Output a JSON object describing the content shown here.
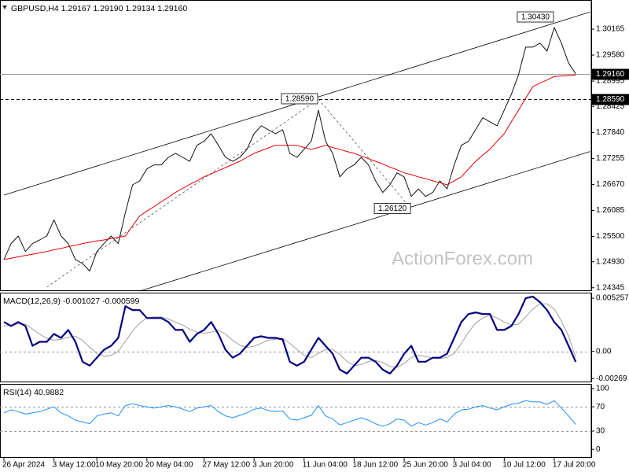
{
  "chart_data": [
    {
      "type": "line",
      "title": "GBPUSD,H4 1.29167 1.29190 1.29134 1.29160",
      "watermark": "ActionForex.com",
      "ylim": [
        1.2427,
        1.3082
      ],
      "yticks": [
        1.30165,
        {
          "value": 1.2958,
          "label": "1.29580"
        },
        1.28995,
        1.28425,
        {
          "value": 1.2784,
          "label": "1.27840"
        },
        1.27255,
        {
          "value": 1.2667,
          "label": "1.26670"
        },
        1.26085,
        {
          "value": 1.255,
          "label": "1.25500"
        },
        {
          "value": 1.2493,
          "label": "1.24930"
        },
        1.24345
      ],
      "series": [
        {
          "color": "#111111",
          "width": 1,
          "values": [
            1.2498,
            1.2534,
            1.2551,
            1.2516,
            1.2534,
            1.2542,
            1.2551,
            1.2587,
            1.2551,
            1.2534,
            1.2498,
            1.2489,
            1.2472,
            1.2516,
            1.2534,
            1.2551,
            1.2534,
            1.2604,
            1.2666,
            1.2675,
            1.2702,
            1.2711,
            1.2711,
            1.2728,
            1.2737,
            1.2728,
            1.2719,
            1.2755,
            1.2764,
            1.2781,
            1.2755,
            1.2728,
            1.2719,
            1.2728,
            1.2746,
            1.2781,
            1.2799,
            1.279,
            1.2781,
            1.279,
            1.2737,
            1.2728,
            1.2746,
            1.2764,
            1.2834,
            1.2764,
            1.2737,
            1.2684,
            1.2702,
            1.2711,
            1.2728,
            1.2711,
            1.2675,
            1.2649,
            1.2666,
            1.2693,
            1.2684,
            1.264,
            1.2657,
            1.264,
            1.2649,
            1.2675,
            1.2657,
            1.2711,
            1.2755,
            1.2764,
            1.279,
            1.2817,
            1.2808,
            1.2799,
            1.2834,
            1.287,
            1.2914,
            1.2976,
            1.2976,
            1.2985,
            1.2967,
            1.302,
            1.2985,
            1.294,
            1.2916
          ]
        },
        {
          "color": "#e00000",
          "width": 1,
          "values": [
            1.2498,
            1.2501,
            1.2504,
            1.2507,
            1.251,
            1.2513,
            1.2516,
            1.252,
            1.2523,
            1.2527,
            1.253,
            1.2534,
            1.2537,
            1.254,
            1.2542,
            1.2545,
            1.2548,
            1.2551,
            1.2574,
            1.2596,
            1.2607,
            1.2617,
            1.2628,
            1.2638,
            1.2649,
            1.2658,
            1.2667,
            1.2675,
            1.2684,
            1.2691,
            1.2698,
            1.2705,
            1.2712,
            1.2719,
            1.2728,
            1.2737,
            1.2743,
            1.2749,
            1.2755,
            1.2755,
            1.2755,
            1.2755,
            1.275,
            1.2746,
            1.275,
            1.2755,
            1.275,
            1.2746,
            1.2741,
            1.2737,
            1.2731,
            1.2725,
            1.2719,
            1.2713,
            1.2706,
            1.27,
            1.2693,
            1.2689,
            1.2684,
            1.268,
            1.2675,
            1.2671,
            1.2666,
            1.2675,
            1.2684,
            1.2702,
            1.2719,
            1.2733,
            1.2746,
            1.2764,
            1.2781,
            1.2808,
            1.2834,
            1.2861,
            1.2887,
            1.2895,
            1.2902,
            1.291,
            1.2911,
            1.2912,
            1.2913
          ]
        }
      ],
      "trendlines": [
        {
          "x": [
            0,
            82
          ],
          "y": [
            1.2643,
            1.3055
          ],
          "dashed": false
        },
        {
          "x": [
            19,
            82
          ],
          "y": [
            1.2427,
            1.2741
          ],
          "dashed": false
        },
        {
          "x": [
            6,
            44
          ],
          "y": [
            1.2436,
            1.2859
          ],
          "dashed": true
        },
        {
          "x": [
            44,
            57
          ],
          "y": [
            1.2859,
            1.2612
          ],
          "dashed": true
        }
      ],
      "hlines": [
        {
          "value": 1.2916,
          "label": "1.29160",
          "dashed": false
        },
        {
          "value": 1.2859,
          "label": "1.28590",
          "dashed": true
        }
      ],
      "annotations": [
        {
          "text": "1.30430",
          "x": 77,
          "y": 1.3043
        },
        {
          "text": "1.28590",
          "x": 44,
          "y": 1.2859
        },
        {
          "text": "1.26120",
          "x": 57,
          "y": 1.2612
        }
      ]
    },
    {
      "type": "line",
      "title": "MACD(12,26,9) -0.001027 -0.000599",
      "ylim": [
        -0.00306,
        0.005806
      ],
      "yticks": [
        0.005257,
        {
          "value": 0,
          "label": "0.00"
        },
        -0.00269
      ],
      "levels": [
        0
      ],
      "series": [
        {
          "color": "#a0a0a0",
          "width": 1,
          "values": [
            0.0025,
            0.0026,
            0.0027,
            0.0027,
            0.0022,
            0.0017,
            0.0013,
            0.0011,
            0.0012,
            0.0014,
            0.0015,
            0.0011,
            0.0004,
            -0.0002,
            -0.0005,
            -0.0004,
            0,
            0.001,
            0.002,
            0.0028,
            0.0033,
            0.0034,
            0.0034,
            0.0032,
            0.0029,
            0.0026,
            0.0022,
            0.0019,
            0.0018,
            0.0019,
            0.0021,
            0.0017,
            0.0011,
            0.0006,
            0.0004,
            0.0005,
            0.0008,
            0.0011,
            0.0012,
            0.0013,
            0.0008,
            0.0002,
            -0.0004,
            -0.0006,
            -0.0002,
            0.0002,
            0.0002,
            -0.0003,
            -0.001,
            -0.0014,
            -0.0013,
            -0.001,
            -0.0009,
            -0.0011,
            -0.0015,
            -0.0016,
            -0.0012,
            -0.0006,
            -0.0004,
            -0.0005,
            -0.0007,
            -0.0007,
            -0.0006,
            -0.0002,
            0.0008,
            0.0019,
            0.0028,
            0.0033,
            0.0036,
            0.0033,
            0.0029,
            0.0026,
            0.0027,
            0.0034,
            0.0042,
            0.0047,
            0.0047,
            0.0042,
            0.003,
            0.0015,
            -0.000599
          ]
        },
        {
          "color": "#00007f",
          "width": 2.2,
          "values": [
            0.002903,
            0.002511,
            0.002903,
            0.002511,
            0.000549,
            0.000942,
            0.000942,
            0.001726,
            0.001334,
            0.002118,
            0.000942,
            -0.00102,
            -0.001412,
            -0.000628,
            0.000157,
            0.000549,
            0.001334,
            0.004472,
            0.00408,
            0.00408,
            0.003295,
            0.003295,
            0.003295,
            0.002903,
            0.002118,
            0.002118,
            0.000942,
            0.001726,
            0.002118,
            0.002903,
            0.001726,
            0.000157,
            -0.000628,
            -0.000235,
            0.000549,
            0.001334,
            0.001491,
            0.001334,
            0.001334,
            0.001177,
            -0.00102,
            -0.001412,
            -0.00102,
            0.000157,
            0.001334,
            0.000549,
            -0.000235,
            -0.001805,
            -0.002197,
            -0.001412,
            -0.000628,
            -0.000628,
            -0.00102,
            -0.001805,
            -0.002197,
            -0.001412,
            -0.000235,
            0.000549,
            -0.00102,
            -0.00102,
            -0.000628,
            -0.000628,
            -0.000235,
            0.001334,
            0.002903,
            0.003688,
            0.003845,
            0.003688,
            0.003688,
            0.002118,
            0.002118,
            0.002511,
            0.003688,
            0.005257,
            0.005414,
            0.004865,
            0.00408,
            0.002903,
            0.002118,
            0.000549,
            -0.001027
          ]
        }
      ]
    },
    {
      "type": "line",
      "title": "RSI(14) 40.9882",
      "ylim": [
        -14,
        107.7
      ],
      "yticks": [
        100,
        70,
        30,
        0
      ],
      "levels": [
        70,
        30
      ],
      "series": [
        {
          "color": "#1e90ff",
          "width": 1,
          "values": [
            60,
            65,
            62,
            58,
            60,
            62,
            66,
            70,
            60,
            55,
            48,
            45,
            42,
            55,
            58,
            60,
            55,
            72,
            75,
            72,
            70,
            68,
            70,
            72,
            70,
            66,
            62,
            68,
            70,
            72,
            62,
            55,
            52,
            56,
            60,
            66,
            68,
            64,
            62,
            63,
            50,
            48,
            52,
            56,
            72,
            55,
            50,
            40,
            44,
            48,
            52,
            48,
            42,
            38,
            42,
            50,
            48,
            38,
            44,
            40,
            44,
            50,
            45,
            58,
            65,
            66,
            70,
            72,
            68,
            65,
            70,
            74,
            76,
            80,
            78,
            78,
            74,
            80,
            68,
            55,
            40.9882
          ]
        }
      ],
      "categories": [
        "26 Apr 2024",
        null,
        null,
        null,
        null,
        null,
        null,
        "3 May 12:00",
        null,
        null,
        null,
        null,
        null,
        "10 May 20:00",
        null,
        null,
        null,
        null,
        null,
        null,
        "20 May 04:00",
        null,
        null,
        null,
        null,
        null,
        null,
        null,
        "27 May 12:00",
        null,
        null,
        null,
        null,
        null,
        null,
        "3 Jun 20:00",
        null,
        null,
        null,
        null,
        null,
        null,
        "11 Jun 04:00",
        null,
        null,
        null,
        null,
        null,
        null,
        "18 Jun 12:00",
        null,
        null,
        null,
        null,
        null,
        null,
        "25 Jun 20:00",
        null,
        null,
        null,
        null,
        null,
        null,
        "3 Jul 04:00",
        null,
        null,
        null,
        null,
        null,
        null,
        "10 Jul 12:00",
        null,
        null,
        null,
        null,
        null,
        null,
        "17 Jul 20:00",
        null,
        null,
        null
      ]
    }
  ]
}
